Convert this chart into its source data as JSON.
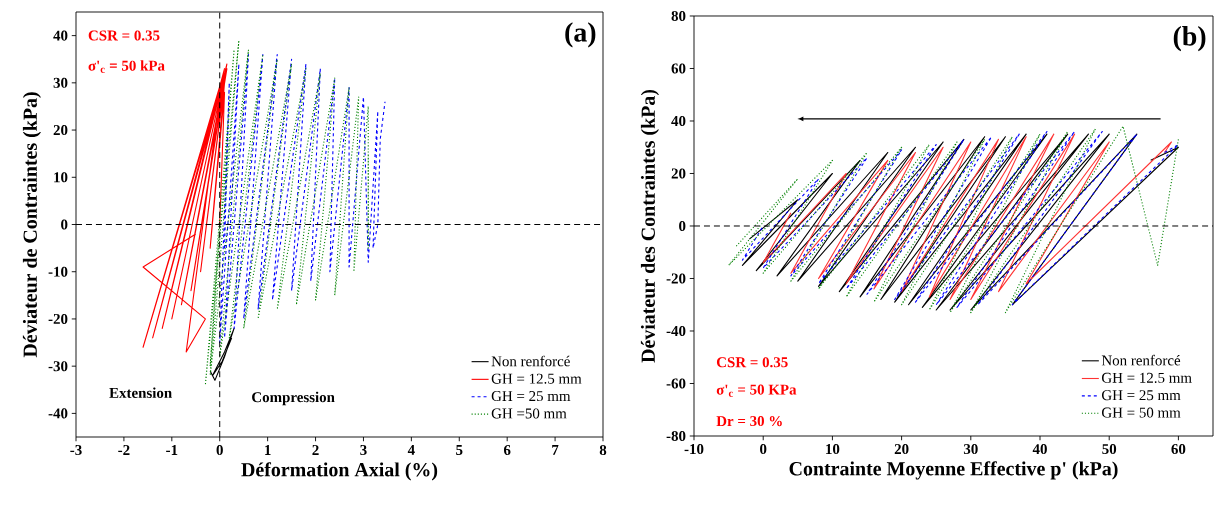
{
  "chart_data": [
    {
      "type": "line",
      "title": "(a)",
      "xlabel": "Déformation Axial (%)",
      "ylabel": "Déviateur de Contraintes (kPa)",
      "xlim": [
        -3,
        8
      ],
      "ylim": [
        -45,
        45
      ],
      "xticks": [
        -3,
        -2,
        -1,
        0,
        1,
        2,
        3,
        4,
        5,
        6,
        7,
        8
      ],
      "yticks": [
        -40,
        -30,
        -20,
        -10,
        0,
        10,
        20,
        30,
        40
      ],
      "legend": "bottom right",
      "grid": false,
      "annotations": [
        "CSR = 0.35",
        "σ'$_{c}$ = 50 kPa",
        "Extension",
        "Compression"
      ],
      "ref_lines": [
        {
          "axis": "y",
          "value": 0,
          "line_style": "dashed",
          "color": "#000000"
        },
        {
          "axis": "x",
          "value": 0,
          "line_style": "dashed",
          "color": "#000000"
        }
      ],
      "series": [
        {
          "name": "Non renforcé",
          "color": "#000000",
          "line_style": "solid",
          "x": [
            -0.2,
            -0.1,
            0.1,
            0.3,
            0.1,
            -0.15,
            0.05,
            0.25
          ],
          "values": [
            -31,
            -33,
            -28,
            -22,
            -27,
            -32,
            -29,
            -24
          ]
        },
        {
          "name": "GH = 12.5 mm",
          "color": "#ff0000",
          "line_style": "solid",
          "x": [
            0,
            0.1,
            -0.2,
            0.1,
            -0.4,
            0.12,
            -0.6,
            0.15,
            -0.8,
            0.15,
            -1.0,
            0.15,
            -1.2,
            0.1,
            -1.4,
            0.1,
            -1.6,
            0.05,
            -0.7,
            -0.3,
            -1.6,
            -0.5
          ],
          "values": [
            0,
            28,
            -5,
            30,
            -10,
            32,
            -14,
            33,
            -17,
            34,
            -20,
            34,
            -22,
            33,
            -24,
            32,
            -26,
            31,
            -27,
            -20,
            -9,
            -2
          ]
        },
        {
          "name": "GH = 25 mm",
          "color": "#0000ff",
          "line_style": "dashed",
          "x": [
            0.1,
            0.2,
            0,
            0.4,
            0.1,
            0.6,
            0.3,
            0.9,
            0.5,
            1.2,
            0.8,
            1.5,
            1.1,
            1.8,
            1.5,
            2.1,
            1.9,
            2.4,
            2.3,
            2.7,
            2.7,
            3.0,
            3.1,
            3.3,
            3.2,
            3.3,
            3.35,
            3.45
          ],
          "values": [
            -5,
            30,
            -25,
            34,
            -24,
            36,
            -22,
            36,
            -20,
            36,
            -18,
            35,
            -16,
            34,
            -14,
            33,
            -12,
            31,
            -10,
            29,
            -9,
            27,
            -8,
            24,
            -5,
            0,
            18,
            26
          ]
        },
        {
          "name": "GH =50 mm",
          "color": "#008000",
          "line_style": "dotted",
          "x": [
            0,
            -0.2,
            0.3,
            -0.3,
            0.4,
            -0.2,
            0.6,
            0,
            0.9,
            0.2,
            1.2,
            0.5,
            1.5,
            0.8,
            1.8,
            1.2,
            2.1,
            1.6,
            2.4,
            2.0,
            2.7,
            2.4,
            2.9,
            2.8,
            3.1,
            3.1,
            3.1
          ],
          "values": [
            0,
            -30,
            37,
            -34,
            39,
            -32,
            37,
            -28,
            36,
            -24,
            35,
            -22,
            34,
            -20,
            33,
            -18,
            32,
            -17,
            31,
            -16,
            29,
            -15,
            27,
            -10,
            25,
            -5,
            15
          ]
        }
      ]
    },
    {
      "type": "line",
      "title": "(b)",
      "xlabel": "Contrainte Moyenne Effective p' (kPa)",
      "ylabel": "Déviateur des Contraintes (kPa)",
      "xlim": [
        -10,
        65
      ],
      "ylim": [
        -80,
        80
      ],
      "xticks": [
        -10,
        0,
        10,
        20,
        30,
        40,
        50,
        60
      ],
      "yticks": [
        -80,
        -60,
        -40,
        -20,
        0,
        20,
        40,
        60,
        80
      ],
      "legend": "bottom right",
      "grid": false,
      "annotations": [
        "CSR = 0.35",
        "σ'$_{c}$ = 50 KPa",
        "Dr = 30 %"
      ],
      "ref_lines": [
        {
          "axis": "y",
          "value": 0,
          "line_style": "dashed",
          "color": "#000000"
        }
      ],
      "series": [
        {
          "name": "Non renforcé",
          "color": "#000000",
          "line_style": "solid",
          "x": [
            56,
            60,
            36,
            54,
            30,
            50,
            27,
            47,
            25,
            44,
            23,
            41,
            21,
            38,
            19,
            35,
            17,
            32,
            14,
            29,
            11,
            26,
            8,
            22,
            5,
            18,
            2,
            14,
            -1,
            10,
            -3,
            5,
            -2
          ],
          "values": [
            25,
            30,
            -30,
            35,
            -32,
            35,
            -32,
            35,
            -32,
            35,
            -31,
            35,
            -30,
            35,
            -29,
            34,
            -28,
            34,
            -27,
            33,
            -25,
            32,
            -23,
            30,
            -21,
            28,
            -19,
            25,
            -17,
            20,
            -15,
            10,
            -5
          ]
        },
        {
          "name": "GH = 12.5 mm",
          "color": "#ff3333",
          "line_style": "solid",
          "x": [
            58,
            59,
            38,
            50,
            34,
            45,
            30,
            42,
            27,
            38,
            24,
            34,
            20,
            30,
            16,
            26,
            12,
            22,
            8,
            18,
            4,
            12,
            0,
            4
          ],
          "values": [
            28,
            32,
            -22,
            32,
            -25,
            35,
            -28,
            35,
            -28,
            34,
            -27,
            33,
            -25,
            32,
            -24,
            30,
            -22,
            28,
            -20,
            25,
            -18,
            20,
            -14,
            5
          ]
        },
        {
          "name": "GH = 25 mm",
          "color": "#0000ff",
          "line_style": "dashed",
          "x": [
            58,
            60,
            36,
            54,
            31,
            49,
            28,
            45,
            25,
            41,
            22,
            37,
            19,
            33,
            15,
            29,
            12,
            25,
            8,
            20,
            4,
            15,
            0,
            8,
            -3,
            0
          ],
          "values": [
            28,
            31,
            -30,
            35,
            -30,
            36,
            -31,
            36,
            -30,
            36,
            -29,
            35,
            -28,
            34,
            -26,
            33,
            -24,
            31,
            -22,
            29,
            -19,
            26,
            -16,
            18,
            -13,
            0
          ]
        },
        {
          "name": "GH = 50 mm",
          "color": "#008000",
          "line_style": "dotted",
          "x": [
            60,
            57,
            52,
            35,
            48,
            30,
            44,
            27,
            40,
            24,
            36,
            20,
            32,
            16,
            28,
            12,
            24,
            8,
            20,
            4,
            15,
            0,
            10,
            -5,
            5,
            -4
          ],
          "values": [
            33,
            -15,
            38,
            -33,
            37,
            -33,
            36,
            -33,
            35,
            -32,
            34,
            -30,
            33,
            -29,
            32,
            -27,
            31,
            -24,
            30,
            -21,
            28,
            -18,
            25,
            -15,
            18,
            -8
          ]
        }
      ]
    }
  ]
}
